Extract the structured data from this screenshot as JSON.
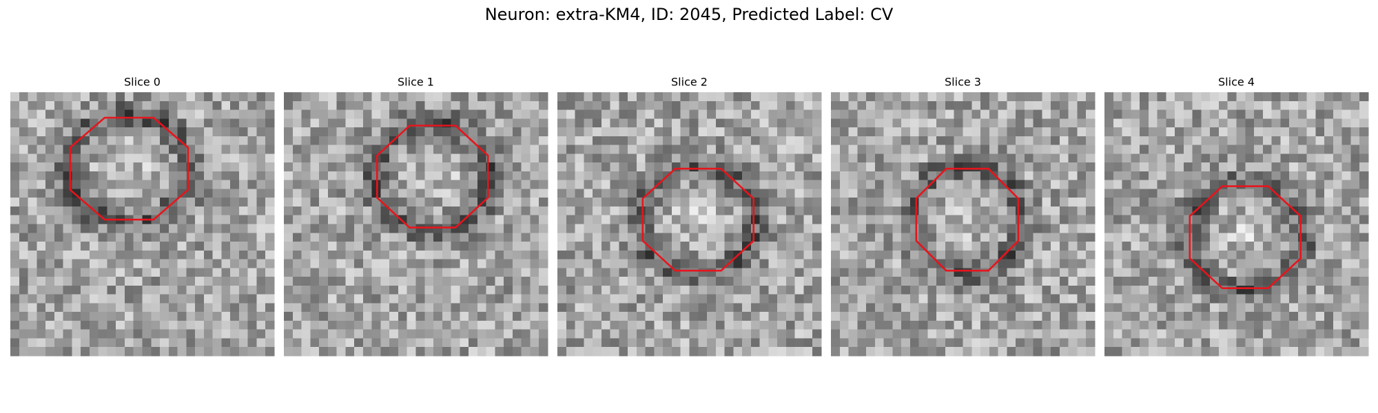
{
  "header": {
    "title": "Neuron: extra-KM4, ID: 2045, Predicted Label: CV"
  },
  "panels": [
    {
      "title": "Slice 0"
    },
    {
      "title": "Slice 1"
    },
    {
      "title": "Slice 2"
    },
    {
      "title": "Slice 3"
    },
    {
      "title": "Slice 4"
    }
  ]
}
